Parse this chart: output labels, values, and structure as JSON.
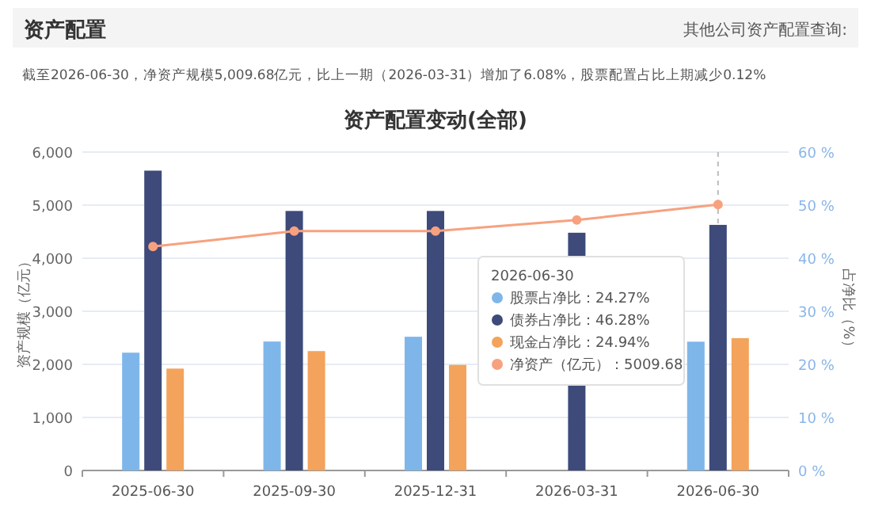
{
  "chart_data": {
    "type": "bar",
    "title": "资产配置变动(全部)",
    "subtitle": "截至2026-06-30，净资产规模5,009.68亿元，比上一期（2026-03-31）增加了6.08%，股票配置占比上期减少0.12%",
    "annotations": [
      "资产配置",
      "其他公司资产配置查询:",
      "：24.27%",
      "：46.28%",
      "：24.94%",
      "：5009.68"
    ],
    "ylabel": "资产规模（亿元）",
    "y2label": "占净比（%）",
    "legend_title": "2026-06-30",
    "categories": [
      "2025-06-30",
      "2025-09-30",
      "2025-12-31",
      "2026-03-31",
      "2026-06-30"
    ],
    "series": [
      {
        "name": "股票占净比",
        "axis": "y2",
        "color": "#7eb6ea",
        "values": [
          22.2,
          24.3,
          25.2,
          null,
          24.27
        ]
      },
      {
        "name": "债券占净比",
        "axis": "y2",
        "color": "#3d4a7a",
        "values": [
          56.5,
          48.9,
          48.9,
          44.8,
          46.28
        ]
      },
      {
        "name": "现金占净比",
        "axis": "y2",
        "color": "#f3a35c",
        "values": [
          19.2,
          22.5,
          19.9,
          null,
          24.94
        ]
      },
      {
        "name": "净资产（亿元）",
        "type": "line",
        "axis": "y",
        "color": "#f7a17f",
        "marker": "circle",
        "values": [
          4220,
          4510,
          4510,
          4720,
          5009.68
        ]
      }
    ],
    "ylim": [
      0,
      6000
    ],
    "yticks": [
      0,
      {
        "value": 1000,
        "label": "1,000"
      },
      {
        "value": 2000,
        "label": "2,000"
      },
      {
        "value": 3000,
        "label": "3,000"
      },
      {
        "value": 4000,
        "label": "4,000"
      },
      {
        "value": 5000,
        "label": "5,000"
      },
      {
        "value": 6000,
        "label": "6,000"
      }
    ],
    "y2lim": [
      0,
      60
    ],
    "y2ticks": [
      {
        "value": 0,
        "label": "0 %"
      },
      {
        "value": 10,
        "label": "10 %"
      },
      {
        "value": 20,
        "label": "20 %"
      },
      {
        "value": 30,
        "label": "30 %"
      },
      {
        "value": 40,
        "label": "40 %"
      },
      {
        "value": 50,
        "label": "50 %"
      },
      {
        "value": 60,
        "label": "60 %"
      }
    ],
    "ref_lines": [
      {
        "axis": "x",
        "value": "2026-06-30",
        "line_style": "dashed",
        "color": "#bbbbbb"
      }
    ],
    "grid": "y",
    "legend": "right"
  }
}
